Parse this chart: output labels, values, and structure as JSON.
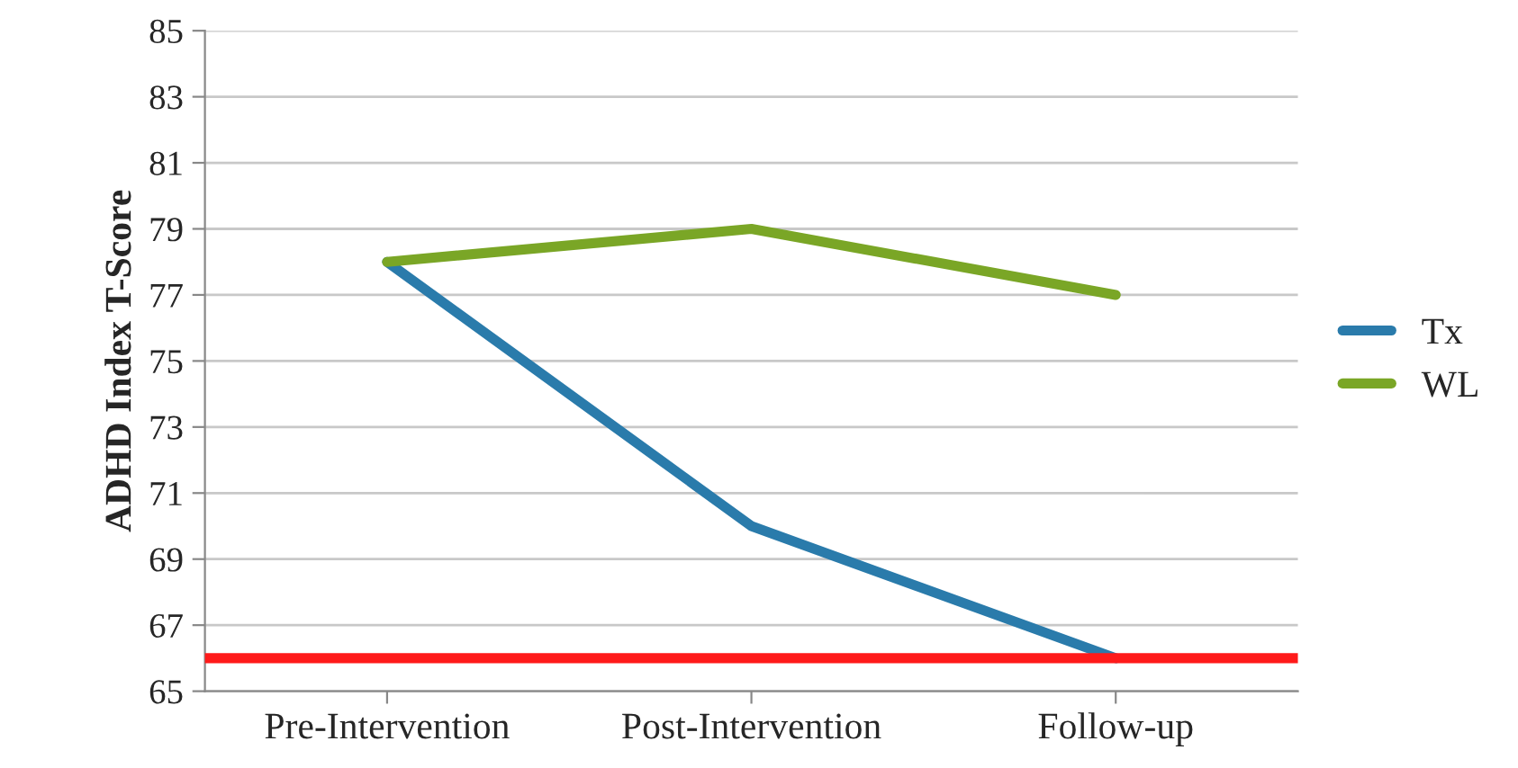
{
  "chart_data": {
    "type": "line",
    "ylabel": "ADHD Index T-Score",
    "categories": [
      "Pre-Intervention",
      "Post-Intervention",
      "Follow-up"
    ],
    "series": [
      {
        "name": "Tx",
        "color": "#2a7bab",
        "values": [
          78,
          70,
          66
        ]
      },
      {
        "name": "WL",
        "color": "#7aa626",
        "values": [
          78,
          79,
          77
        ]
      }
    ],
    "ylim": [
      65,
      85
    ],
    "yticks": [
      65,
      67,
      69,
      71,
      73,
      75,
      77,
      79,
      81,
      83,
      85
    ],
    "ref_lines": [
      {
        "axis": "y",
        "value": 66,
        "color": "#ff1a1a"
      }
    ],
    "grid": "y",
    "legend": "right",
    "marker": "none",
    "line_style": "solid"
  }
}
